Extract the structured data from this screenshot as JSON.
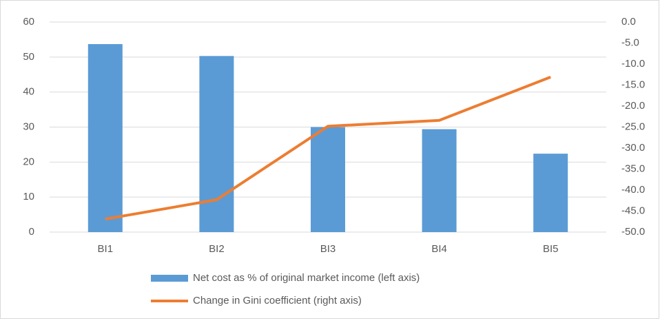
{
  "chart_data": {
    "type": "bar-line",
    "categories": [
      "BI1",
      "BI2",
      "BI3",
      "BI4",
      "BI5"
    ],
    "series": [
      {
        "name": "Net cost as % of original market income (left axis)",
        "type": "bar",
        "color": "#5b9bd5",
        "values": [
          53.7,
          50.3,
          30.0,
          29.4,
          22.4
        ]
      },
      {
        "name": "Change in Gini coefficient (right axis)",
        "type": "line",
        "axis": "y2",
        "color": "#ed7d31",
        "values": [
          -46.9,
          -42.3,
          -24.8,
          -23.4,
          -13.1
        ]
      }
    ],
    "ylim": [
      0,
      60
    ],
    "yticks": [
      0,
      10,
      20,
      30,
      40,
      50,
      60
    ],
    "y2lim": [
      -50,
      0
    ],
    "y2ticks": [
      {
        "value": 0,
        "label": "0.0"
      },
      {
        "value": -5,
        "label": "-5.0"
      },
      {
        "value": -10,
        "label": "-10.0"
      },
      {
        "value": -15,
        "label": "-15.0"
      },
      {
        "value": -20,
        "label": "-20.0"
      },
      {
        "value": -25,
        "label": "-25.0"
      },
      {
        "value": -30,
        "label": "-30.0"
      },
      {
        "value": -35,
        "label": "-35.0"
      },
      {
        "value": -40,
        "label": "-40.0"
      },
      {
        "value": -45,
        "label": "-45.0"
      },
      {
        "value": -50,
        "label": "-50.0"
      }
    ],
    "grid": true
  }
}
